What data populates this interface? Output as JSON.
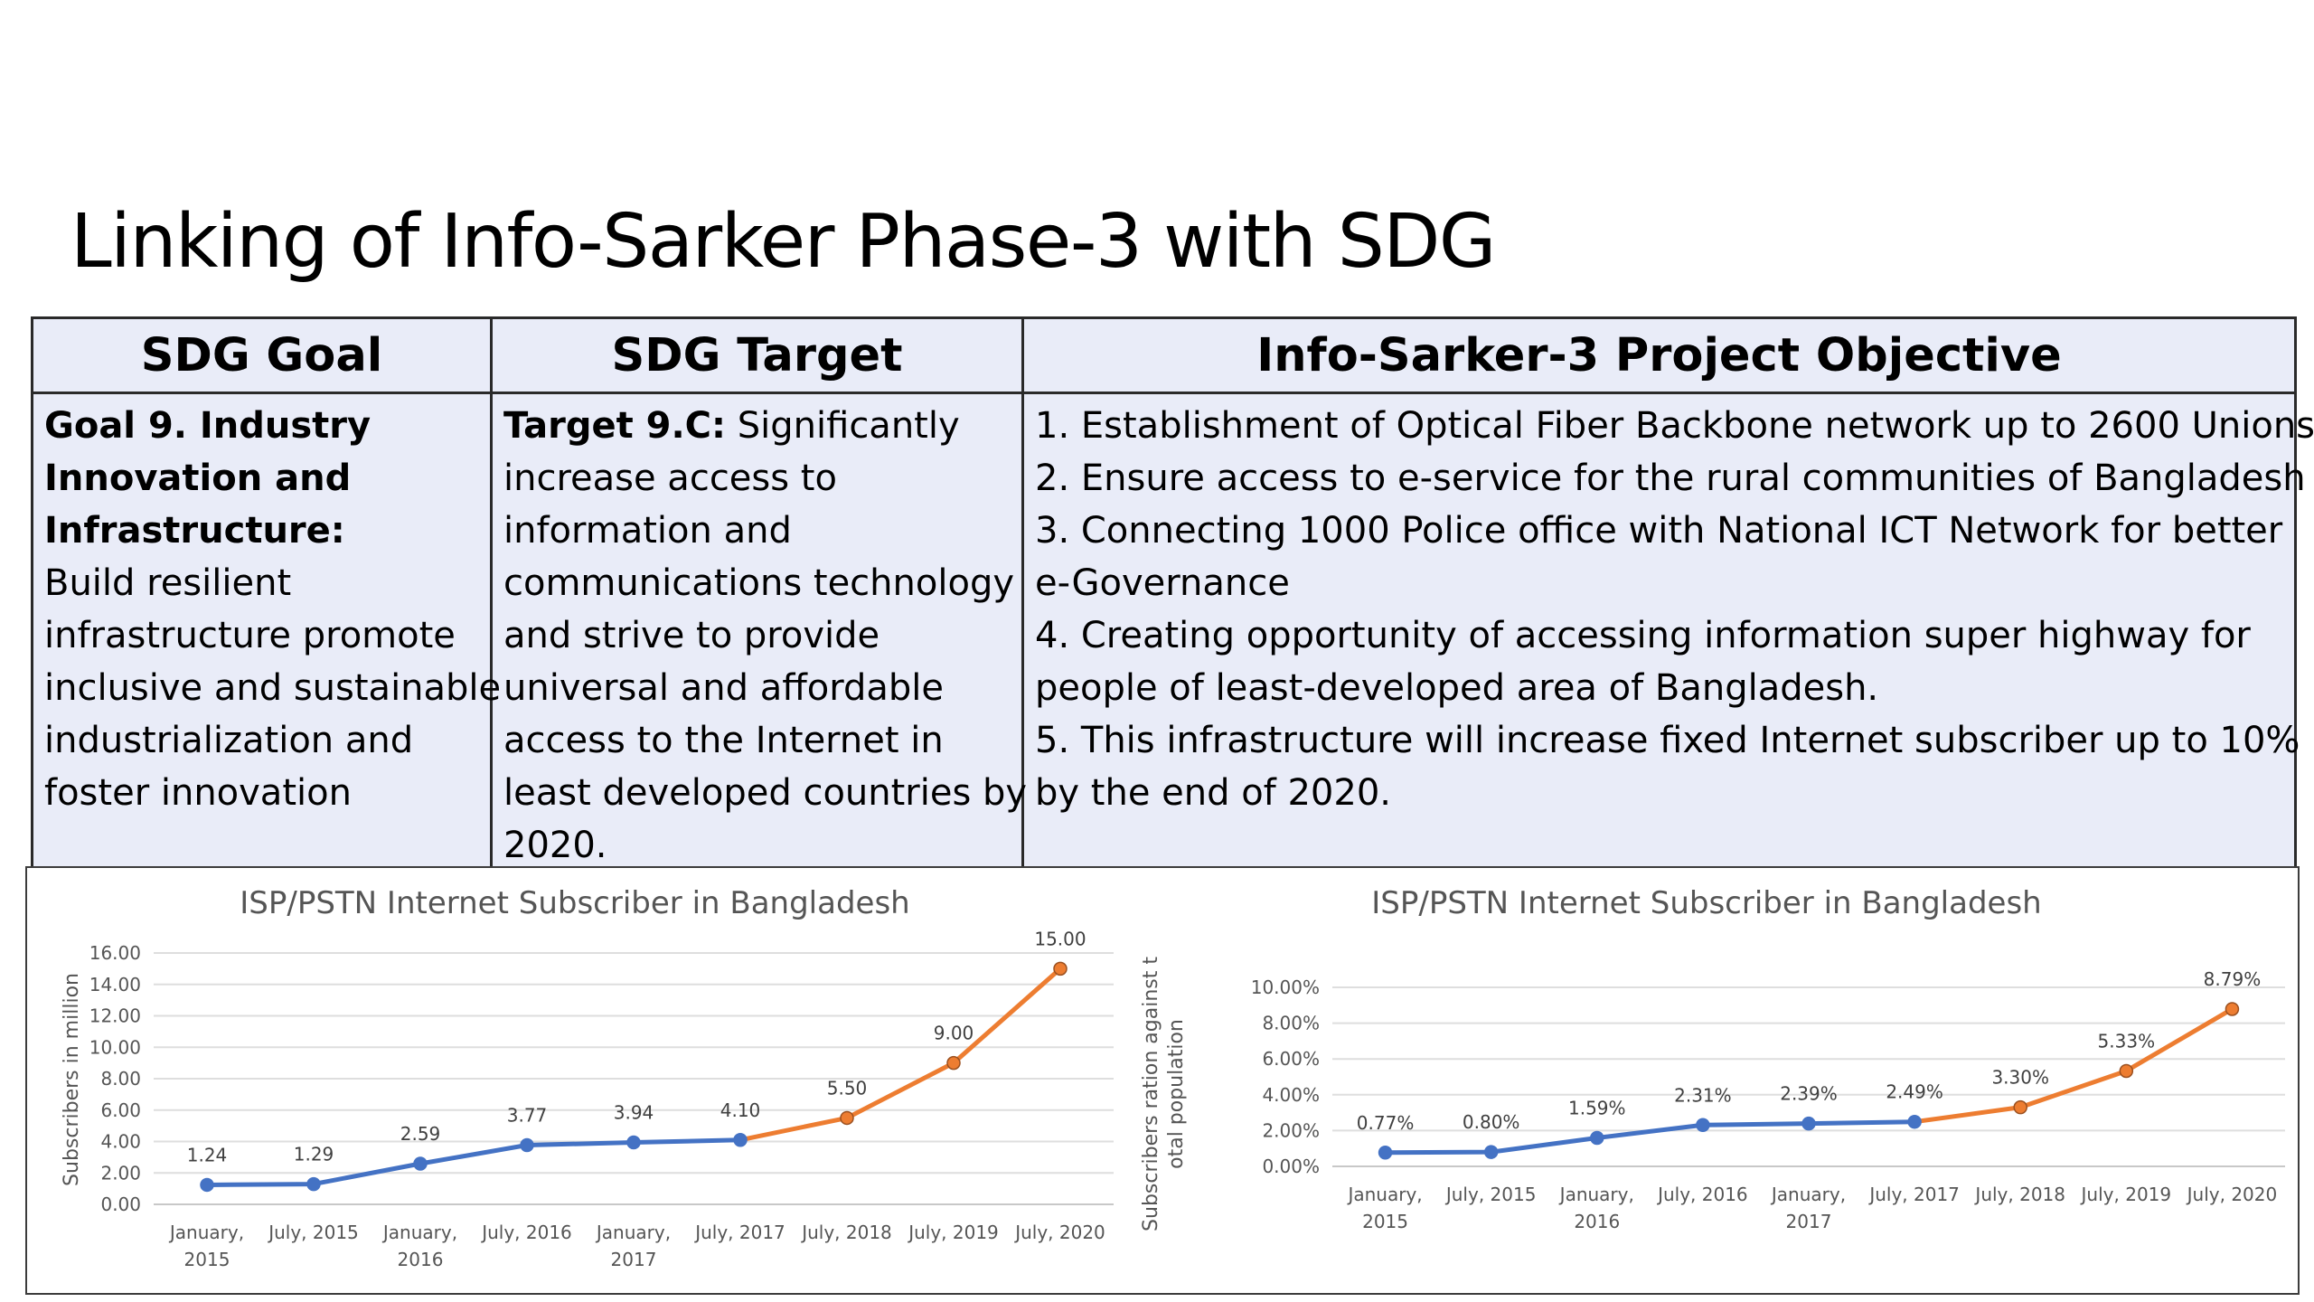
{
  "title": "Linking of Info-Sarker Phase-3 with SDG",
  "table": {
    "headers": [
      "SDG Goal",
      "SDG Target",
      "Info-Sarker-3 Project Objective"
    ],
    "goal": {
      "bold_lines": [
        "Goal 9. Industry",
        "Innovation and",
        "Infrastructure:"
      ],
      "lines": [
        "Build resilient",
        "infrastructure promote",
        "inclusive and sustainable",
        "industrialization and",
        "foster innovation"
      ]
    },
    "target": {
      "bold": "Target 9.C:",
      "first_rest": " Significantly",
      "lines": [
        "increase access to",
        "information and",
        "communications technology",
        "and strive to provide",
        "universal and affordable",
        "access to the Internet in",
        "least developed countries by",
        "2020."
      ]
    },
    "objectives": [
      "1. Establishment of Optical Fiber Backbone network up to 2600 Unions.",
      "2. Ensure access to e-service for the rural communities of Bangladesh",
      "3. Connecting 1000 Police office with National ICT Network for better",
      "e-Governance",
      "4. Creating opportunity of accessing information super highway for",
      "people of least-developed area of Bangladesh.",
      "5. This infrastructure will increase fixed Internet subscriber up to 10%",
      "by the end of 2020."
    ]
  },
  "chart_data": [
    {
      "type": "line",
      "title": "ISP/PSTN Internet Subscriber in Bangladesh",
      "ylabel": "Subscribers in million",
      "xlabel": "",
      "categories": [
        [
          "January,",
          "2015"
        ],
        [
          "July, 2015"
        ],
        [
          "January,",
          "2016"
        ],
        [
          "July, 2016"
        ],
        [
          "January,",
          "2017"
        ],
        [
          "July, 2017"
        ],
        [
          "July, 2018"
        ],
        [
          "July, 2019"
        ],
        [
          "July, 2020"
        ]
      ],
      "values": [
        1.24,
        1.29,
        2.59,
        3.77,
        3.94,
        4.1,
        5.5,
        9.0,
        15.0
      ],
      "value_labels": [
        "1.24",
        "1.29",
        "2.59",
        "3.77",
        "3.94",
        "4.10",
        "5.50",
        "9.00",
        "15.00"
      ],
      "yticks": [
        "0.00",
        "2.00",
        "4.00",
        "6.00",
        "8.00",
        "10.00",
        "12.00",
        "14.00",
        "16.00"
      ],
      "ylim": [
        0,
        16
      ],
      "actual_until_index": 5,
      "colors": {
        "actual": "#4472c4",
        "projected": "#ed7d31"
      },
      "grid": true
    },
    {
      "type": "line",
      "title": "ISP/PSTN Internet Subscriber in Bangladesh",
      "ylabel": "Subscribers ration against total population",
      "xlabel": "",
      "categories": [
        [
          "January,",
          "2015"
        ],
        [
          "July, 2015"
        ],
        [
          "January,",
          "2016"
        ],
        [
          "July, 2016"
        ],
        [
          "January,",
          "2017"
        ],
        [
          "July, 2017"
        ],
        [
          "July, 2018"
        ],
        [
          "July, 2019"
        ],
        [
          "July, 2020"
        ]
      ],
      "values": [
        0.77,
        0.8,
        1.59,
        2.31,
        2.39,
        2.49,
        3.3,
        5.33,
        8.79
      ],
      "value_labels": [
        "0.77%",
        "0.80%",
        "1.59%",
        "2.31%",
        "2.39%",
        "2.49%",
        "3.30%",
        "5.33%",
        "8.79%"
      ],
      "yticks": [
        "0.00%",
        "2.00%",
        "4.00%",
        "6.00%",
        "8.00%",
        "10.00%"
      ],
      "ylim": [
        0,
        10
      ],
      "actual_until_index": 5,
      "colors": {
        "actual": "#4472c4",
        "projected": "#ed7d31"
      },
      "grid": true
    }
  ]
}
